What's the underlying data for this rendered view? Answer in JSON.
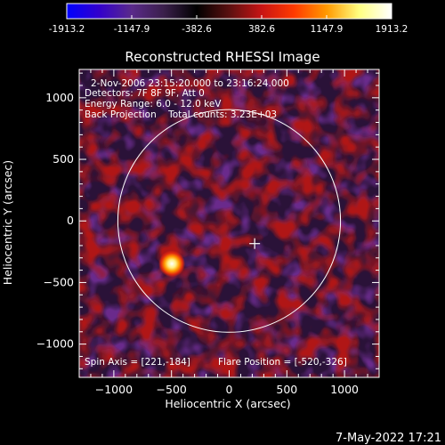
{
  "colorbar": {
    "tick_labels": [
      "-1913.2",
      "-1147.9",
      "-382.6",
      "382.6",
      "1147.9",
      "1913.2"
    ],
    "tick_values": [
      -1913.2,
      -1147.9,
      -382.6,
      382.6,
      1147.9,
      1913.2
    ],
    "range": [
      -1913.2,
      1913.2
    ],
    "colors": [
      "#0000ff",
      "#3300cc",
      "#5a2a8a",
      "#3a1f4a",
      "#000000",
      "#5a1010",
      "#c81414",
      "#ff3a00",
      "#ff9900",
      "#ffff80",
      "#ffffff"
    ]
  },
  "chart_data": {
    "type": "heatmap",
    "title": "Reconstructed RHESSI Image",
    "xlabel": "Heliocentric X (arcsec)",
    "ylabel": "Heliocentric Y (arcsec)",
    "xlim": [
      -1300,
      1300
    ],
    "ylim": [
      -1270,
      1230
    ],
    "x_ticks": [
      -1000,
      -500,
      0,
      500,
      1000
    ],
    "y_ticks": [
      -1000,
      -500,
      0,
      500,
      1000
    ],
    "x_tick_labels": [
      "−1000",
      "−500",
      "0",
      "500",
      "1000"
    ],
    "y_tick_labels": [
      "−1000",
      "−500",
      "0",
      "500",
      "1000"
    ],
    "info_lines": [
      "2-Nov-2006 23:15:20.000 to 23:16:24.000",
      "Detectors: 7F 8F 9F, Att 0",
      "Energy Range: 6.0 - 12.0 keV",
      "Back Projection    Total counts: 3.23E+03"
    ],
    "spin_axis_text": "Spin Axis = [221,-184]",
    "flare_position_text": "Flare Position = [-520,-326]",
    "spin_axis": [
      221,
      -184
    ],
    "flare_position": [
      -520,
      -326
    ],
    "solar_disk_center": [
      0,
      0
    ],
    "solar_disk_radius": 965
  },
  "footer": {
    "date": "7-May-2022 17:21"
  }
}
